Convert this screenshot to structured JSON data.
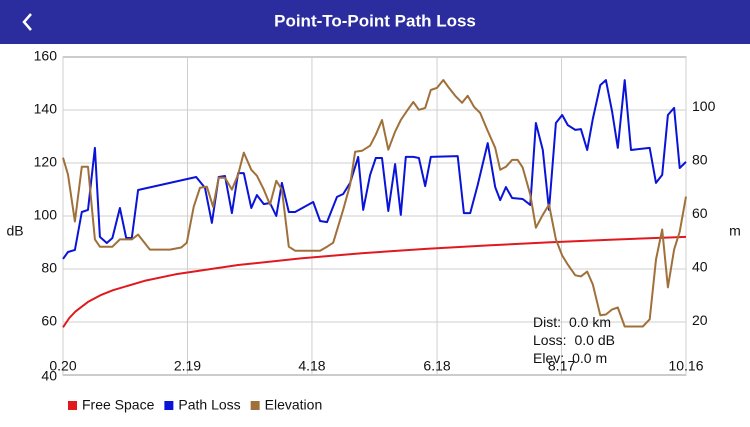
{
  "header": {
    "title": "Point-To-Point Path Loss"
  },
  "chart_data": {
    "type": "line",
    "xlim": [
      0.2,
      10.16
    ],
    "xticks": [
      {
        "value": 0.2,
        "label": "0.20"
      },
      2.19,
      4.18,
      6.18,
      8.17,
      10.16
    ],
    "ylim": [
      40,
      160
    ],
    "yticks": [
      40,
      60,
      80,
      100,
      120,
      140,
      160
    ],
    "y_label": "dB",
    "y2lim": [
      0,
      118.7
    ],
    "y2ticks": [
      20,
      40,
      60,
      80,
      100
    ],
    "y2_label": "m",
    "grid": true,
    "legend": "bottom-left",
    "series": [
      {
        "name": "Free Space",
        "color": "#e0191f",
        "x": [
          0.2,
          0.3,
          0.4,
          0.6,
          0.8,
          1,
          1.5,
          2,
          3,
          4,
          5,
          6,
          7,
          8,
          9,
          10.16
        ],
        "values": [
          58.0,
          61.5,
          64.0,
          67.6,
          70.1,
          72.0,
          75.5,
          78.0,
          81.5,
          84.0,
          86.0,
          87.6,
          88.9,
          90.1,
          91.1,
          92.1
        ]
      },
      {
        "name": "Path Loss",
        "color": "#0a14d8",
        "x": [
          0.2,
          0.28,
          0.39,
          0.5,
          0.6,
          0.71,
          0.79,
          0.9,
          0.99,
          1.11,
          1.21,
          1.3,
          1.4,
          2.33,
          2.47,
          2.58,
          2.69,
          2.79,
          2.9,
          3.0,
          3.09,
          3.21,
          3.3,
          3.41,
          3.51,
          3.61,
          3.7,
          3.81,
          3.91,
          4.2,
          4.31,
          4.42,
          4.58,
          4.68,
          4.79,
          4.92,
          5.0,
          5.11,
          5.2,
          5.3,
          5.4,
          5.51,
          5.6,
          5.68,
          5.8,
          5.89,
          5.99,
          6.08,
          6.51,
          6.61,
          6.71,
          6.83,
          6.99,
          7.11,
          7.19,
          7.28,
          7.38,
          7.55,
          7.67,
          7.76,
          7.87,
          7.97,
          8.08,
          8.18,
          8.27,
          8.39,
          8.48,
          8.58,
          8.67,
          8.79,
          8.88,
          8.98,
          9.07,
          9.18,
          9.28,
          9.58,
          9.68,
          9.78,
          9.87,
          9.97,
          10.06,
          10.16
        ],
        "values": [
          83.8,
          86.4,
          87.2,
          101.5,
          102.3,
          125.7,
          92.1,
          89.8,
          91.7,
          103.0,
          91.7,
          91.7,
          109.8,
          114.7,
          110.6,
          97.4,
          114.7,
          115.1,
          101.1,
          116.2,
          116.2,
          103.0,
          107.9,
          104.5,
          104.9,
          100.0,
          112.5,
          101.5,
          101.5,
          105.3,
          98.1,
          97.7,
          107.2,
          108.3,
          112.5,
          122.3,
          102.3,
          115.5,
          121.9,
          121.9,
          101.9,
          119.6,
          100.4,
          122.3,
          122.3,
          121.9,
          111.3,
          122.3,
          122.6,
          101.1,
          101.1,
          111.7,
          127.5,
          110.9,
          106.0,
          110.9,
          106.8,
          106.4,
          104.2,
          135.1,
          124.9,
          102.3,
          135.1,
          138.1,
          134.3,
          132.5,
          132.8,
          124.9,
          136.6,
          149.4,
          151.3,
          139.2,
          125.7,
          151.3,
          124.9,
          125.7,
          112.5,
          115.5,
          138.1,
          140.8,
          118.1,
          120.4
        ]
      },
      {
        "name": "Elevation",
        "color": "#a0703a",
        "axis": "y2",
        "x": [
          0.2,
          0.28,
          0.39,
          0.5,
          0.6,
          0.71,
          0.79,
          0.99,
          1.11,
          1.3,
          1.4,
          1.59,
          1.91,
          2.09,
          2.18,
          2.29,
          2.39,
          2.5,
          2.6,
          2.69,
          2.79,
          2.9,
          3.0,
          3.09,
          3.21,
          3.3,
          3.41,
          3.51,
          3.61,
          3.7,
          3.81,
          3.91,
          4.31,
          4.42,
          4.52,
          4.68,
          4.79,
          4.87,
          4.98,
          5.11,
          5.2,
          5.3,
          5.4,
          5.51,
          5.6,
          5.7,
          5.8,
          5.89,
          5.99,
          6.08,
          6.18,
          6.28,
          6.37,
          6.47,
          6.58,
          6.67,
          6.77,
          6.87,
          6.99,
          7.11,
          7.19,
          7.28,
          7.38,
          7.47,
          7.55,
          7.67,
          7.76,
          7.87,
          7.97,
          8.08,
          8.18,
          8.27,
          8.39,
          8.48,
          8.58,
          8.67,
          8.79,
          8.88,
          8.98,
          9.07,
          9.18,
          9.47,
          9.58,
          9.68,
          9.78,
          9.87,
          9.97,
          10.06,
          10.16
        ],
        "values": [
          81.1,
          74.8,
          57.3,
          77.7,
          77.7,
          50.6,
          47.9,
          47.9,
          50.6,
          50.6,
          52.4,
          46.8,
          46.8,
          47.6,
          49.4,
          62.8,
          69.9,
          70.3,
          62.8,
          73.6,
          73.6,
          69.2,
          74.8,
          83.0,
          76.6,
          74.4,
          69.2,
          63.6,
          72.5,
          69.2,
          47.9,
          46.4,
          46.4,
          47.9,
          49.4,
          61.7,
          71.0,
          83.3,
          83.7,
          85.6,
          89.7,
          95.2,
          84.1,
          90.8,
          95.2,
          98.6,
          101.9,
          99.0,
          99.7,
          106.4,
          107.2,
          110.1,
          107.2,
          104.2,
          101.6,
          104.2,
          100.1,
          97.8,
          91.1,
          84.8,
          76.6,
          77.7,
          80.3,
          80.3,
          77.4,
          67.3,
          55.0,
          59.8,
          63.6,
          50.6,
          44.6,
          41.2,
          37.2,
          36.8,
          38.6,
          33.8,
          22.3,
          22.6,
          24.5,
          25.2,
          18.1,
          18.1,
          20.8,
          43.1,
          54.3,
          32.7,
          46.8,
          53.5,
          66.6
        ]
      }
    ],
    "info": [
      {
        "label": "Dist:",
        "value": "0.0 km"
      },
      {
        "label": "Loss:",
        "value": "0.0 dB"
      },
      {
        "label": "Elev:",
        "value": "0.0 m"
      }
    ]
  }
}
